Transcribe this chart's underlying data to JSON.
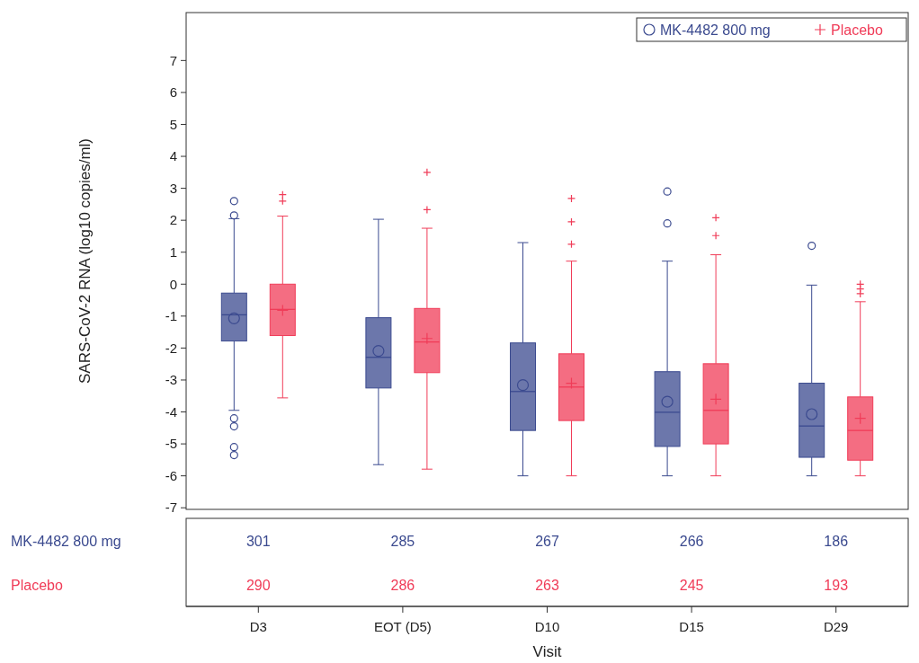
{
  "chart_data": {
    "type": "box",
    "xlabel": "Visit",
    "ylabel": "SARS-CoV-2 RNA (log10 copies/ml)",
    "categories": [
      "D3",
      "EOT (D5)",
      "D10",
      "D15",
      "D29"
    ],
    "ylim": [
      -7.05,
      8.5
    ],
    "yticks": [
      -7,
      -6,
      -5,
      -4,
      -3,
      -2,
      -1,
      0,
      1,
      2,
      3,
      4,
      5,
      6,
      7
    ],
    "grid": false,
    "legend": "top right",
    "series": [
      {
        "name": "MK-4482 800 mg",
        "color": "#3b4a8f",
        "marker": "circle",
        "boxes": [
          {
            "low": -3.95,
            "q1": -1.78,
            "median": -0.96,
            "q3": -0.28,
            "high": 2.05,
            "mean": -1.07,
            "outliers": [
              2.6,
              2.15,
              -4.2,
              -4.45,
              -5.1,
              -5.35
            ]
          },
          {
            "low": -5.65,
            "q1": -3.25,
            "median": -2.29,
            "q3": -1.05,
            "high": 2.03,
            "mean": -2.09
          },
          {
            "low": -6,
            "q1": -4.58,
            "median": -3.36,
            "q3": -1.84,
            "high": 1.3,
            "mean": -3.16
          },
          {
            "low": -6,
            "q1": -5.08,
            "median": -4.01,
            "q3": -2.74,
            "high": 0.72,
            "mean": -3.68,
            "outliers": [
              2.9,
              1.9
            ]
          },
          {
            "low": -6,
            "q1": -5.42,
            "median": -4.44,
            "q3": -3.1,
            "high": -0.03,
            "mean": -4.07,
            "outliers": [
              1.2
            ]
          }
        ]
      },
      {
        "name": "Placebo",
        "color": "#f03c58",
        "marker": "cross",
        "boxes": [
          {
            "low": -3.56,
            "q1": -1.61,
            "median": -0.79,
            "q3": 0,
            "high": 2.13,
            "mean": -0.82,
            "outliers": [
              2.8,
              2.6
            ]
          },
          {
            "low": -5.79,
            "q1": -2.77,
            "median": -1.81,
            "q3": -0.76,
            "high": 1.75,
            "mean": -1.7,
            "outliers": [
              3.5,
              2.33
            ]
          },
          {
            "low": -6,
            "q1": -4.27,
            "median": -3.22,
            "q3": -2.18,
            "high": 0.72,
            "mean": -3.1,
            "outliers": [
              2.68,
              1.95,
              1.25
            ]
          },
          {
            "low": -6,
            "q1": -5.0,
            "median": -3.95,
            "q3": -2.49,
            "high": 0.92,
            "mean": -3.6,
            "outliers": [
              2.08,
              1.52
            ]
          },
          {
            "low": -6,
            "q1": -5.51,
            "median": -4.58,
            "q3": -3.53,
            "high": -0.55,
            "mean": -4.2,
            "outliers": [
              0.0,
              -0.15,
              -0.3
            ]
          }
        ]
      }
    ],
    "annotations": [
      "301",
      "285",
      "267",
      "266",
      "186",
      "290",
      "286",
      "263",
      "245",
      "193"
    ]
  }
}
